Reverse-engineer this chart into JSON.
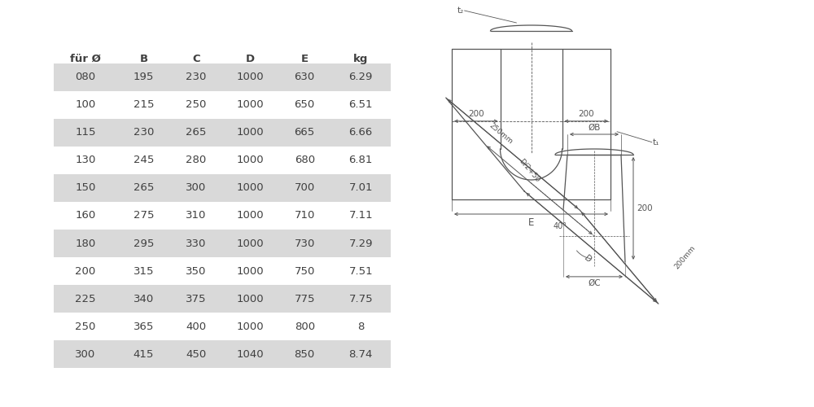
{
  "table_headers": [
    "für Ø",
    "B",
    "C",
    "D",
    "E",
    "kg"
  ],
  "table_rows": [
    [
      "080",
      "195",
      "230",
      "1000",
      "630",
      "6.29"
    ],
    [
      "100",
      "215",
      "250",
      "1000",
      "650",
      "6.51"
    ],
    [
      "115",
      "230",
      "265",
      "1000",
      "665",
      "6.66"
    ],
    [
      "130",
      "245",
      "280",
      "1000",
      "680",
      "6.81"
    ],
    [
      "150",
      "265",
      "300",
      "1000",
      "700",
      "7.01"
    ],
    [
      "160",
      "275",
      "310",
      "1000",
      "710",
      "7.11"
    ],
    [
      "180",
      "295",
      "330",
      "1000",
      "730",
      "7.29"
    ],
    [
      "200",
      "315",
      "350",
      "1000",
      "750",
      "7.51"
    ],
    [
      "225",
      "340",
      "375",
      "1000",
      "775",
      "7.75"
    ],
    [
      "250",
      "365",
      "400",
      "1000",
      "800",
      "8"
    ],
    [
      "300",
      "415",
      "450",
      "1040",
      "850",
      "8.74"
    ]
  ],
  "shaded_rows": [
    0,
    2,
    4,
    6,
    8,
    10
  ],
  "row_bg_color": "#d9d9d9",
  "text_color": "#404040",
  "bg_color": "#ffffff",
  "line_color": "#555555"
}
